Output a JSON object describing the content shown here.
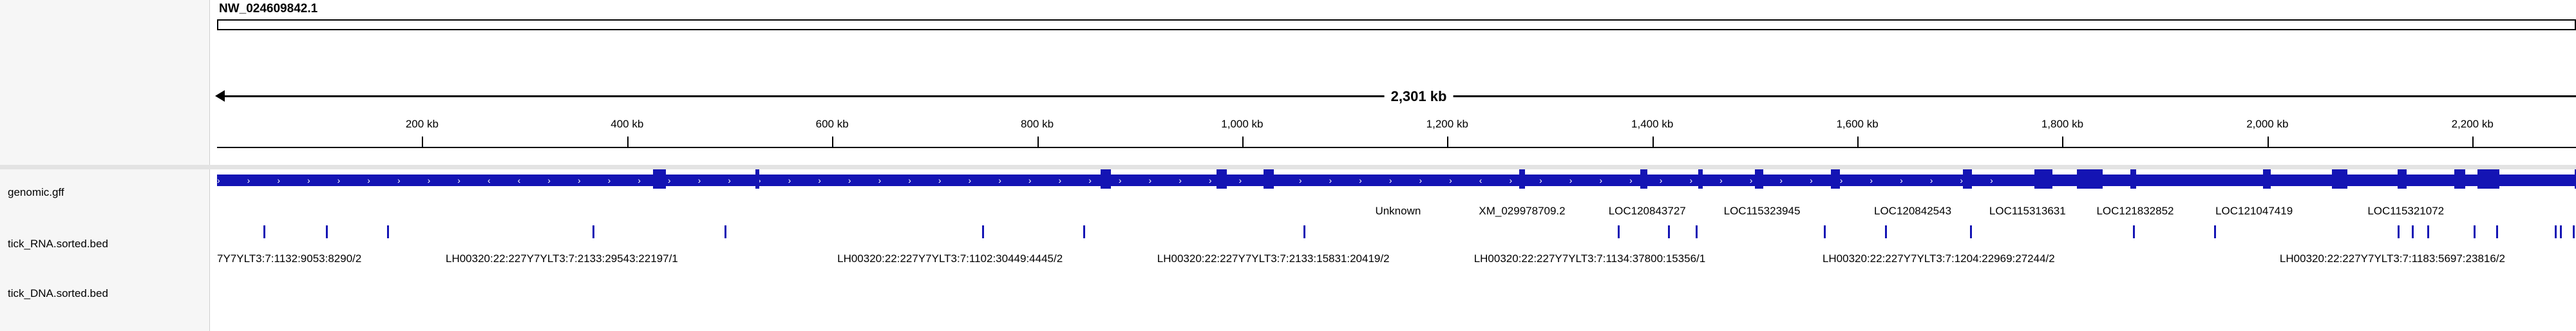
{
  "header": {
    "chromosome": "NW_024609842.1",
    "span_label": "2,301 kb"
  },
  "ruler": {
    "ticks": [
      {
        "label": "200 kb",
        "pos": 200
      },
      {
        "label": "400 kb",
        "pos": 400
      },
      {
        "label": "600 kb",
        "pos": 600
      },
      {
        "label": "800 kb",
        "pos": 800
      },
      {
        "label": "1,000 kb",
        "pos": 1000
      },
      {
        "label": "1,200 kb",
        "pos": 1200
      },
      {
        "label": "1,400 kb",
        "pos": 1400
      },
      {
        "label": "1,600 kb",
        "pos": 1600
      },
      {
        "label": "1,800 kb",
        "pos": 1800
      },
      {
        "label": "2,000 kb",
        "pos": 2000
      },
      {
        "label": "2,200 kb",
        "pos": 2200
      }
    ],
    "total_kb": 2301
  },
  "tracks": {
    "gff_name": "genomic.gff",
    "rna_name": "tick_RNA.sorted.bed",
    "dna_name": "tick_DNA.sorted.bed"
  },
  "colors": {
    "feature": "#1414b4"
  },
  "gene_labels": [
    {
      "text": "Unknown",
      "kb": 1152
    },
    {
      "text": "XM_029978709.2",
      "kb": 1273
    },
    {
      "text": "LOC120843727",
      "kb": 1395
    },
    {
      "text": "LOC115323945",
      "kb": 1507
    },
    {
      "text": "LOC120842543",
      "kb": 1654
    },
    {
      "text": "LOC115313631",
      "kb": 1766
    },
    {
      "text": "LOC121832852",
      "kb": 1871
    },
    {
      "text": "LOC121047419",
      "kb": 1987
    },
    {
      "text": "LOC115321072",
      "kb": 2135
    }
  ],
  "rna_labels": [
    {
      "text": "7Y7YLT3:7:1132:9053:8290/2",
      "kb": 0
    },
    {
      "text": "LH00320:22:227Y7YLT3:7:2133:29543:22197/1",
      "kb": 223
    },
    {
      "text": "LH00320:22:227Y7YLT3:7:1102:30449:4445/2",
      "kb": 605
    },
    {
      "text": "LH00320:22:227Y7YLT3:7:2133:15831:20419/2",
      "kb": 917
    },
    {
      "text": "LH00320:22:227Y7YLT3:7:1134:37800:15356/1",
      "kb": 1226
    },
    {
      "text": "LH00320:22:227Y7YLT3:7:1204:22969:27244/2",
      "kb": 1566
    },
    {
      "text": "LH00320:22:227Y7YLT3:7:1183:5697:23816/2",
      "kb": 2012
    }
  ],
  "rna_ticks_kb": [
    45,
    106,
    166,
    366,
    495,
    746,
    845,
    1060,
    1366,
    1415,
    1442,
    1567,
    1627,
    1710,
    1869,
    1948,
    2127,
    2141,
    2156,
    2201,
    2223,
    2280,
    2285,
    2306
  ],
  "exons_kb": [
    [
      425,
      438
    ],
    [
      525,
      529
    ],
    [
      862,
      872
    ],
    [
      975,
      985
    ],
    [
      1021,
      1031
    ],
    [
      1270,
      1276
    ],
    [
      1388,
      1395
    ],
    [
      1445,
      1449
    ],
    [
      1500,
      1508
    ],
    [
      1574,
      1583
    ],
    [
      1703,
      1712
    ],
    [
      1773,
      1790
    ],
    [
      1814,
      1839
    ],
    [
      1866,
      1872
    ],
    [
      1996,
      2003
    ],
    [
      2063,
      2078
    ],
    [
      2127,
      2136
    ],
    [
      2182,
      2193
    ],
    [
      2205,
      2226
    ],
    [
      2300,
      2309
    ]
  ]
}
